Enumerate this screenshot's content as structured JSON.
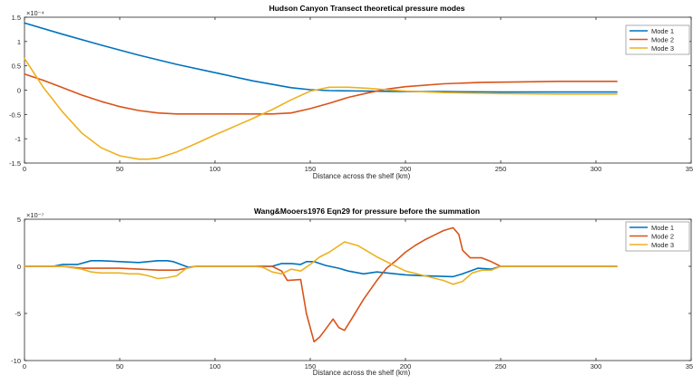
{
  "chart_data": [
    {
      "type": "line",
      "title": "Hudson Canyon Transect theoretical pressure modes",
      "xlabel": "Distance across the shelf (km)",
      "ylabel": "",
      "exponent_label": "×10⁻⁴",
      "xlim": [
        0,
        350
      ],
      "ylim": [
        -1.5,
        1.5
      ],
      "xticks": [
        0,
        50,
        100,
        150,
        200,
        250,
        300,
        350
      ],
      "xtick_labels": [
        "0",
        "50",
        "100",
        "150",
        "200",
        "250",
        "300",
        "350"
      ],
      "yticks": [
        -1.5,
        -1,
        -0.5,
        0,
        0.5,
        1,
        1.5
      ],
      "ytick_labels": [
        "-1.5",
        "-1",
        "-0.5",
        "0",
        "0.5",
        "1",
        "1.5"
      ],
      "grid": false,
      "legend_position": "top-right",
      "series": [
        {
          "name": "Mode 1",
          "color": "#0072BD",
          "x": [
            0,
            20,
            40,
            60,
            80,
            100,
            120,
            140,
            150,
            160,
            180,
            200,
            220,
            250,
            280,
            311
          ],
          "y": [
            1.38,
            1.15,
            0.93,
            0.72,
            0.53,
            0.36,
            0.19,
            0.05,
            0.01,
            -0.01,
            -0.02,
            -0.03,
            -0.03,
            -0.04,
            -0.04,
            -0.04
          ]
        },
        {
          "name": "Mode 2",
          "color": "#D95319",
          "x": [
            0,
            10,
            20,
            30,
            40,
            50,
            60,
            70,
            80,
            100,
            120,
            130,
            140,
            150,
            160,
            170,
            180,
            190,
            200,
            220,
            240,
            260,
            280,
            311
          ],
          "y": [
            0.33,
            0.2,
            0.05,
            -0.1,
            -0.23,
            -0.34,
            -0.42,
            -0.47,
            -0.49,
            -0.49,
            -0.49,
            -0.49,
            -0.47,
            -0.38,
            -0.27,
            -0.15,
            -0.06,
            0.02,
            0.07,
            0.13,
            0.16,
            0.17,
            0.18,
            0.18
          ]
        },
        {
          "name": "Mode 3",
          "color": "#EDB120",
          "x": [
            0,
            5,
            10,
            20,
            30,
            40,
            50,
            60,
            65,
            70,
            80,
            90,
            100,
            110,
            120,
            130,
            140,
            150,
            160,
            170,
            180,
            190,
            200,
            220,
            250,
            280,
            311
          ],
          "y": [
            0.65,
            0.35,
            0.05,
            -0.45,
            -0.88,
            -1.18,
            -1.35,
            -1.42,
            -1.42,
            -1.4,
            -1.27,
            -1.1,
            -0.92,
            -0.75,
            -0.58,
            -0.4,
            -0.2,
            -0.02,
            0.06,
            0.06,
            0.04,
            0.01,
            -0.02,
            -0.05,
            -0.07,
            -0.08,
            -0.08
          ]
        }
      ]
    },
    {
      "type": "line",
      "title": "Wang&Mooers1976 Eqn29 for pressure before the summation",
      "xlabel": "Distance across the shelf (km)",
      "ylabel": "",
      "exponent_label": "×10⁻⁷",
      "xlim": [
        0,
        350
      ],
      "ylim": [
        -10,
        5
      ],
      "xticks": [
        0,
        50,
        100,
        150,
        200,
        250,
        300,
        350
      ],
      "xtick_labels": [
        "0",
        "50",
        "100",
        "150",
        "200",
        "250",
        "300",
        "350"
      ],
      "yticks": [
        -10,
        -5,
        0,
        5
      ],
      "ytick_labels": [
        "-10",
        "-5",
        "0",
        "5"
      ],
      "grid": false,
      "legend_position": "top-right",
      "series": [
        {
          "name": "Mode 1",
          "color": "#0072BD",
          "x": [
            0,
            15,
            20,
            28,
            35,
            40,
            50,
            60,
            65,
            70,
            75,
            78,
            82,
            86,
            90,
            100,
            110,
            120,
            130,
            135,
            140,
            145,
            148,
            152,
            158,
            165,
            170,
            178,
            185,
            200,
            210,
            225,
            230,
            238,
            245,
            250,
            260,
            280,
            311
          ],
          "y": [
            0,
            0,
            0.2,
            0.2,
            0.6,
            0.6,
            0.5,
            0.4,
            0.5,
            0.6,
            0.6,
            0.5,
            0.2,
            -0.1,
            0,
            0,
            0,
            0,
            0,
            0.3,
            0.3,
            0.2,
            0.5,
            0.5,
            0.1,
            -0.2,
            -0.5,
            -0.8,
            -0.6,
            -0.9,
            -1,
            -1.1,
            -0.8,
            -0.2,
            -0.3,
            0,
            0,
            0,
            0
          ]
        },
        {
          "name": "Mode 2",
          "color": "#D95319",
          "x": [
            0,
            20,
            30,
            40,
            50,
            60,
            70,
            80,
            85,
            90,
            100,
            120,
            130,
            135,
            138,
            145,
            148,
            152,
            155,
            158,
            162,
            165,
            168,
            172,
            178,
            185,
            190,
            195,
            200,
            205,
            210,
            215,
            220,
            225,
            228,
            230,
            234,
            240,
            245,
            250,
            280,
            311
          ],
          "y": [
            0,
            0,
            -0.2,
            -0.2,
            -0.2,
            -0.3,
            -0.4,
            -0.4,
            -0.2,
            0,
            0,
            0,
            0,
            -0.5,
            -1.5,
            -1.4,
            -5,
            -8,
            -7.5,
            -6.7,
            -5.6,
            -6.5,
            -6.8,
            -5.5,
            -3.5,
            -1.5,
            -0.2,
            0.6,
            1.5,
            2.2,
            2.8,
            3.3,
            3.8,
            4.1,
            3.4,
            1.7,
            0.9,
            0.9,
            0.5,
            0,
            0,
            0
          ]
        },
        {
          "name": "Mode 3",
          "color": "#EDB120",
          "x": [
            0,
            20,
            30,
            35,
            40,
            50,
            55,
            60,
            65,
            70,
            75,
            80,
            85,
            90,
            100,
            110,
            120,
            125,
            130,
            135,
            140,
            145,
            150,
            155,
            160,
            168,
            175,
            185,
            200,
            210,
            220,
            225,
            230,
            235,
            240,
            245,
            250,
            280,
            311
          ],
          "y": [
            0,
            0,
            -0.3,
            -0.6,
            -0.7,
            -0.7,
            -0.8,
            -0.8,
            -1,
            -1.3,
            -1.2,
            -1,
            -0.2,
            0,
            0,
            0,
            0,
            -0.1,
            -0.6,
            -0.8,
            -0.3,
            -0.5,
            0.2,
            1,
            1.5,
            2.6,
            2.2,
            1,
            -0.5,
            -1,
            -1.5,
            -1.9,
            -1.6,
            -0.7,
            -0.4,
            -0.4,
            0,
            0,
            0
          ]
        }
      ]
    }
  ]
}
